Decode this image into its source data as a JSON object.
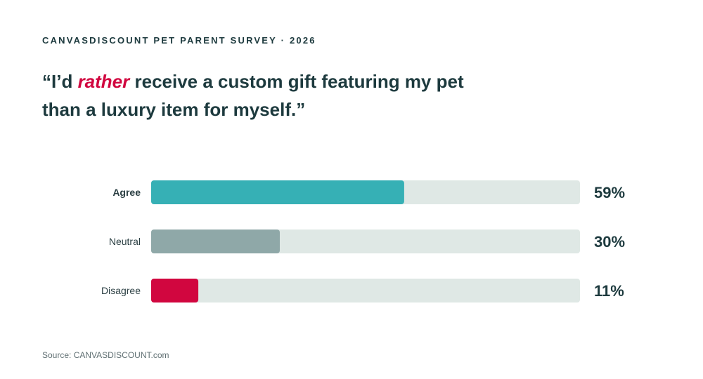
{
  "eyebrow": "CANVASDISCOUNT PET PARENT SURVEY · 2026",
  "headline": {
    "before": "“I’d ",
    "emphasis": "rather",
    "after": " receive a custom gift featuring my pet than a luxury item for myself.”"
  },
  "source": "Source: CANVASDISCOUNT.com",
  "colors": {
    "track": "#dfe8e5",
    "label_text": "#2a3e42",
    "value_text": "#1d3a3e",
    "emphasis": "#d1063f"
  },
  "chart_data": {
    "type": "bar",
    "orientation": "horizontal",
    "categories": [
      "Agree",
      "Neutral",
      "Disagree"
    ],
    "values": [
      59,
      30,
      11
    ],
    "value_labels": [
      "59%",
      "30%",
      "11%"
    ],
    "bar_colors": [
      "#36b0b5",
      "#8fa8a8",
      "#d1063f"
    ],
    "highlighted_category": "Agree",
    "xlim": [
      0,
      100
    ],
    "unit": "%",
    "grid": false,
    "legend": "none"
  }
}
